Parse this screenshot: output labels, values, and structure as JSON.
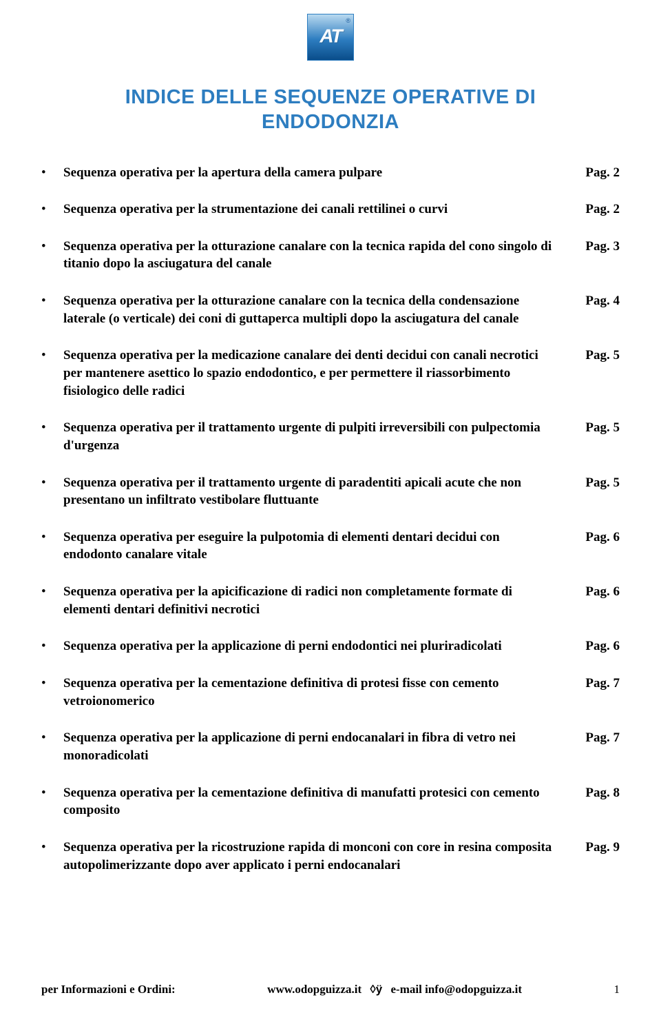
{
  "logo": {
    "text": "AT",
    "registered": "®"
  },
  "title": {
    "line1": "INDICE DELLE SEQUENZE OPERATIVE DI",
    "line2": "ENDODONZIA",
    "color": "#2d7dc0",
    "fontsize": 29
  },
  "toc": {
    "item_fontsize": 19,
    "item_spacing": 28,
    "items": [
      {
        "text": "Sequenza operativa per la apertura della camera pulpare",
        "page": "Pag. 2"
      },
      {
        "text": "Sequenza operativa per la strumentazione dei canali rettilinei o curvi",
        "page": "Pag. 2"
      },
      {
        "text": "Sequenza operativa per la otturazione canalare con la tecnica rapida del cono singolo di titanio dopo la asciugatura del canale",
        "page": "Pag. 3"
      },
      {
        "text": "Sequenza operativa per la otturazione canalare con la tecnica della condensazione laterale (o verticale) dei coni di guttaperca multipli dopo la asciugatura del canale",
        "page": "Pag. 4"
      },
      {
        "text": "Sequenza operativa per la medicazione canalare dei denti decidui con canali necrotici per mantenere asettico lo spazio endodontico, e per permettere il riassorbimento fisiologico delle radici",
        "page": "Pag. 5"
      },
      {
        "text": "Sequenza operativa per il trattamento urgente di pulpiti irreversibili con pulpectomia d'urgenza",
        "page": "Pag. 5"
      },
      {
        "text": "Sequenza operativa per il trattamento urgente di paradentiti apicali acute che non presentano un infiltrato vestibolare fluttuante",
        "page": "Pag. 5"
      },
      {
        "text": "Sequenza operativa per eseguire la pulpotomia di elementi dentari decidui con endodonto canalare vitale",
        "page": "Pag. 6"
      },
      {
        "text": "Sequenza operativa per la apicificazione di radici non completamente formate di elementi dentari definitivi necrotici",
        "page": "Pag. 6"
      },
      {
        "text": "Sequenza operativa per la applicazione di perni endodontici nei pluriradicolati",
        "page": "Pag. 6"
      },
      {
        "text": "Sequenza operativa per la cementazione definitiva di protesi fisse con cemento vetroionomerico",
        "page": "Pag. 7"
      },
      {
        "text": "Sequenza operativa per la applicazione di perni endocanalari in fibra di vetro nei monoradicolati",
        "page": "Pag. 7"
      },
      {
        "text": "Sequenza operativa per la cementazione definitiva di manufatti protesici con cemento composito",
        "page": "Pag. 8"
      },
      {
        "text": "Sequenza operativa per la ricostruzione rapida di monconi con core in resina composita autopolimerizzante dopo aver applicato i perni endocanalari",
        "page": "Pag. 9"
      }
    ]
  },
  "footer": {
    "info_label": "per Informazioni e Ordini:",
    "site": "www.odopguizza.it",
    "separator": "◊ÿ",
    "email": "e-mail info@odopguizza.it",
    "page_number": "1"
  }
}
